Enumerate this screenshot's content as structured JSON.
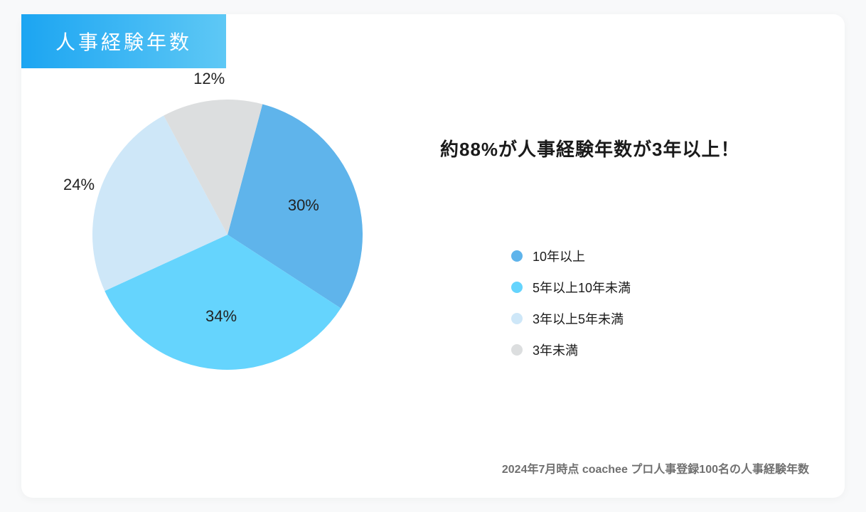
{
  "title": "人事経験年数",
  "chart": {
    "type": "pie",
    "radius": 190,
    "start_angle_deg": -75,
    "background_color": "#ffffff",
    "label_fontsize": 22,
    "label_color": "#222222",
    "slices": [
      {
        "label": "10年以上",
        "value": 30,
        "color": "#5fb4eb",
        "text": "30%",
        "label_r": 115
      },
      {
        "label": "5年以上10年未満",
        "value": 34,
        "color": "#65d4fd",
        "text": "34%",
        "label_r": 115
      },
      {
        "label": "3年以上5年未満",
        "value": 24,
        "color": "#cee7f8",
        "text": "24%",
        "label_r": 220
      },
      {
        "label": "3年未満",
        "value": 12,
        "color": "#dcdedf",
        "text": "12%",
        "label_r": 220
      }
    ]
  },
  "headline": "約88%が人事経験年数が3年以上！",
  "legend_items": [
    {
      "label": "10年以上",
      "color": "#5fb4eb"
    },
    {
      "label": "5年以上10年未満",
      "color": "#65d4fd"
    },
    {
      "label": "3年以上5年未満",
      "color": "#cee7f8"
    },
    {
      "label": "3年未満",
      "color": "#dcdedf"
    }
  ],
  "footnote": "2024年7月時点 coachee プロ人事登録100名の人事経験年数",
  "title_badge": {
    "gradient_from": "#1ca5f2",
    "gradient_to": "#5ec8f5",
    "text_color": "#ffffff",
    "fontsize": 28
  },
  "headline_style": {
    "fontsize": 26,
    "color": "#1a1a1a",
    "weight": 700
  },
  "legend_style": {
    "dot_size": 16,
    "fontsize": 18,
    "color": "#1a1a1a"
  },
  "footnote_style": {
    "fontsize": 16,
    "color": "#707070",
    "weight": 600
  }
}
